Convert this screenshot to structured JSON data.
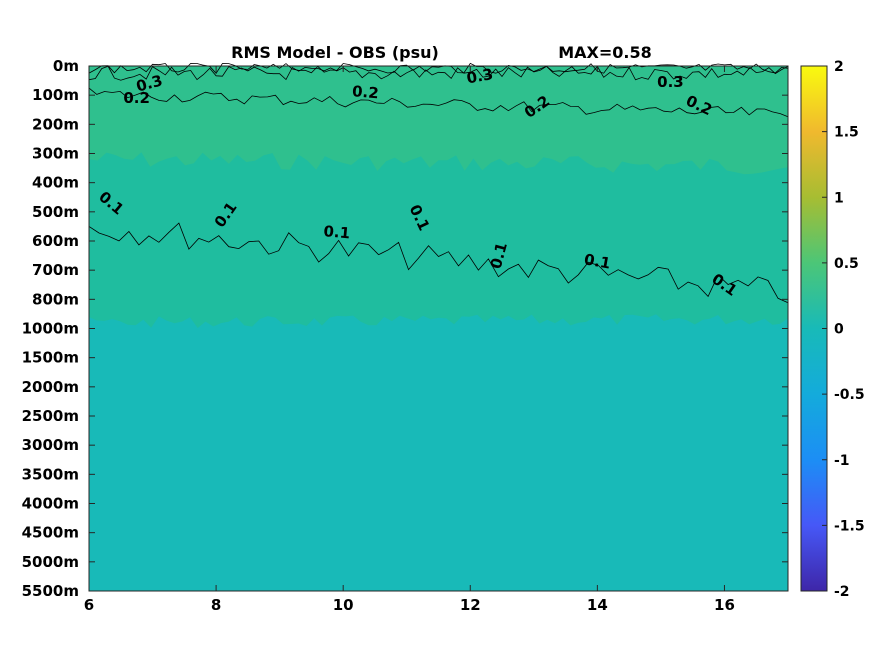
{
  "chart_data": {
    "type": "heatmap",
    "title": "RMS Model - OBS (psu)",
    "subtitle": "MAX=0.58",
    "xlabel": "",
    "ylabel": "",
    "x_ticks": [
      "6",
      "8",
      "10",
      "12",
      "14",
      "16"
    ],
    "x_tick_values": [
      6,
      8,
      10,
      12,
      14,
      16
    ],
    "xlim": [
      6,
      17
    ],
    "y_ticks": [
      "0m",
      "100m",
      "200m",
      "300m",
      "400m",
      "500m",
      "600m",
      "700m",
      "800m",
      "1000m",
      "1500m",
      "2000m",
      "2500m",
      "3000m",
      "3500m",
      "4000m",
      "4500m",
      "5000m",
      "5500m"
    ],
    "colorbar": {
      "ticks": [
        "2",
        "1.5",
        "1",
        "0.5",
        "0",
        "-0.5",
        "-1",
        "-1.5",
        "-2"
      ],
      "tick_values": [
        2,
        1.5,
        1,
        0.5,
        0,
        -0.5,
        -1,
        -1.5,
        -2
      ],
      "clim": [
        -2,
        2
      ],
      "colormap": "parula"
    },
    "colors": {
      "upper_layer": "#2fc08e",
      "middle_layer": "#1fbd9f",
      "deep_layer": "#18bab8"
    },
    "contour_levels": [
      0.1,
      0.2,
      0.3
    ],
    "contour_labels": [
      {
        "text": "0.3",
        "x": 6.95,
        "depth_index": 0.6,
        "angle": -15
      },
      {
        "text": "0.3",
        "x": 12.15,
        "depth_index": 0.35,
        "angle": -10
      },
      {
        "text": "0.3",
        "x": 15.15,
        "depth_index": 0.55,
        "angle": 0
      },
      {
        "text": "0.2",
        "x": 6.75,
        "depth_index": 1.1,
        "angle": 0
      },
      {
        "text": "0.2",
        "x": 10.35,
        "depth_index": 0.9,
        "angle": 5
      },
      {
        "text": "0.2",
        "x": 13.05,
        "depth_index": 1.4,
        "angle": -35
      },
      {
        "text": "0.2",
        "x": 15.6,
        "depth_index": 1.35,
        "angle": 25
      },
      {
        "text": "0.1",
        "x": 6.35,
        "depth_index": 4.7,
        "angle": 40
      },
      {
        "text": "0.1",
        "x": 8.15,
        "depth_index": 5.1,
        "angle": -55
      },
      {
        "text": "0.1",
        "x": 9.9,
        "depth_index": 5.7,
        "angle": 5
      },
      {
        "text": "0.1",
        "x": 11.2,
        "depth_index": 5.2,
        "angle": 65
      },
      {
        "text": "0.1",
        "x": 12.45,
        "depth_index": 6.5,
        "angle": -75
      },
      {
        "text": "0.1",
        "x": 14.0,
        "depth_index": 6.7,
        "angle": 10
      },
      {
        "text": "0.1",
        "x": 16.0,
        "depth_index": 7.5,
        "angle": 35
      }
    ]
  }
}
